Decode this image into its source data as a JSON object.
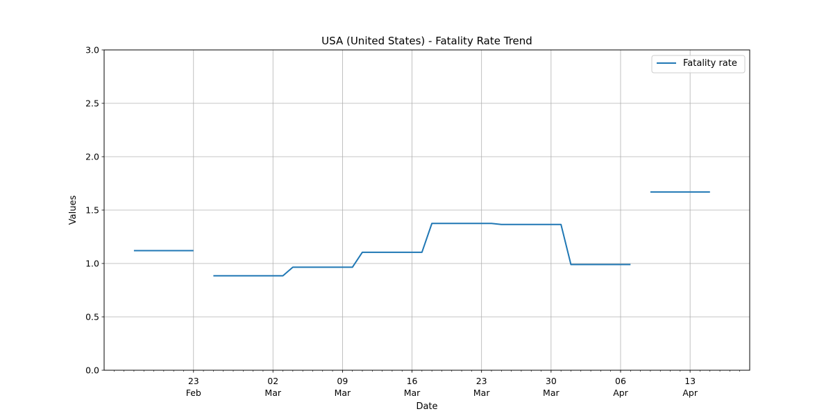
{
  "chart_data": {
    "type": "line",
    "title": "USA (United States) - Fatality Rate Trend",
    "xlabel": "Date",
    "ylabel": "Values",
    "xlim": [
      "2020-02-14",
      "2020-04-19"
    ],
    "ylim": [
      0,
      3
    ],
    "yticks": [
      0.0,
      0.5,
      1.0,
      1.5,
      2.0,
      2.5,
      3.0
    ],
    "ytick_labels": [
      "0.0",
      "0.5",
      "1.0",
      "1.5",
      "2.0",
      "2.5",
      "3.0"
    ],
    "xticks": [
      {
        "date": "2020-02-23",
        "day": "23",
        "month": "Feb"
      },
      {
        "date": "2020-03-02",
        "day": "02",
        "month": "Mar"
      },
      {
        "date": "2020-03-09",
        "day": "09",
        "month": "Mar"
      },
      {
        "date": "2020-03-16",
        "day": "16",
        "month": "Mar"
      },
      {
        "date": "2020-03-23",
        "day": "23",
        "month": "Mar"
      },
      {
        "date": "2020-03-30",
        "day": "30",
        "month": "Mar"
      },
      {
        "date": "2020-04-06",
        "day": "06",
        "month": "Apr"
      },
      {
        "date": "2020-04-13",
        "day": "13",
        "month": "Apr"
      }
    ],
    "grid": true,
    "legend_position": "top-right",
    "series": [
      {
        "name": "Fatality rate",
        "color": "#1f77b4",
        "segments": [
          [
            {
              "x": "2020-02-17",
              "y": 1.12
            },
            {
              "x": "2020-02-23",
              "y": 1.12
            }
          ],
          [
            {
              "x": "2020-02-25",
              "y": 0.885
            },
            {
              "x": "2020-03-03",
              "y": 0.885
            },
            {
              "x": "2020-03-04",
              "y": 0.965
            },
            {
              "x": "2020-03-10",
              "y": 0.965
            },
            {
              "x": "2020-03-11",
              "y": 1.105
            },
            {
              "x": "2020-03-17",
              "y": 1.105
            },
            {
              "x": "2020-03-18",
              "y": 1.375
            },
            {
              "x": "2020-03-24",
              "y": 1.375
            },
            {
              "x": "2020-03-25",
              "y": 1.365
            },
            {
              "x": "2020-03-31",
              "y": 1.365
            },
            {
              "x": "2020-04-01",
              "y": 0.99
            },
            {
              "x": "2020-04-07",
              "y": 0.99
            }
          ],
          [
            {
              "x": "2020-04-09",
              "y": 1.67
            },
            {
              "x": "2020-04-15",
              "y": 1.67
            }
          ]
        ]
      }
    ]
  }
}
